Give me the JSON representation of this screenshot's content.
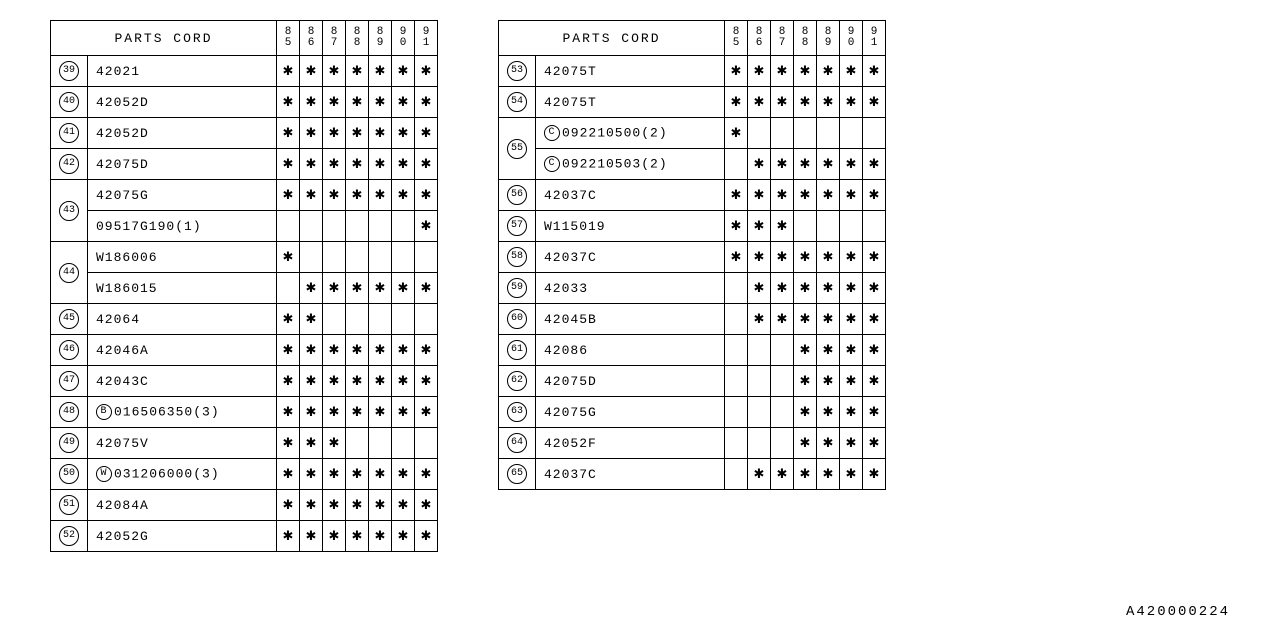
{
  "header": "PARTS CORD",
  "years": [
    "85",
    "86",
    "87",
    "88",
    "89",
    "90",
    "91"
  ],
  "doc_id": "A420000224",
  "left_rows": [
    {
      "ref": "39",
      "part": "42021",
      "marks": [
        1,
        1,
        1,
        1,
        1,
        1,
        1
      ]
    },
    {
      "ref": "40",
      "part": "42052D",
      "marks": [
        1,
        1,
        1,
        1,
        1,
        1,
        1
      ]
    },
    {
      "ref": "41",
      "part": "42052D",
      "marks": [
        1,
        1,
        1,
        1,
        1,
        1,
        1
      ]
    },
    {
      "ref": "42",
      "part": "42075D",
      "marks": [
        1,
        1,
        1,
        1,
        1,
        1,
        1
      ]
    },
    {
      "ref": "43",
      "span": 2,
      "part": "42075G",
      "marks": [
        1,
        1,
        1,
        1,
        1,
        1,
        1
      ]
    },
    {
      "part": "09517G190(1)",
      "marks": [
        0,
        0,
        0,
        0,
        0,
        0,
        1
      ]
    },
    {
      "ref": "44",
      "span": 2,
      "part": "W186006",
      "marks": [
        1,
        0,
        0,
        0,
        0,
        0,
        0
      ]
    },
    {
      "part": "W186015",
      "marks": [
        0,
        1,
        1,
        1,
        1,
        1,
        1
      ]
    },
    {
      "ref": "45",
      "part": "42064",
      "marks": [
        1,
        1,
        0,
        0,
        0,
        0,
        0
      ]
    },
    {
      "ref": "46",
      "part": "42046A",
      "marks": [
        1,
        1,
        1,
        1,
        1,
        1,
        1
      ]
    },
    {
      "ref": "47",
      "part": "42043C",
      "marks": [
        1,
        1,
        1,
        1,
        1,
        1,
        1
      ]
    },
    {
      "ref": "48",
      "prefix": "B",
      "part": "016506350(3)",
      "marks": [
        1,
        1,
        1,
        1,
        1,
        1,
        1
      ]
    },
    {
      "ref": "49",
      "part": "42075V",
      "marks": [
        1,
        1,
        1,
        0,
        0,
        0,
        0
      ]
    },
    {
      "ref": "50",
      "prefix": "W",
      "part": "031206000(3)",
      "marks": [
        1,
        1,
        1,
        1,
        1,
        1,
        1
      ]
    },
    {
      "ref": "51",
      "part": "42084A",
      "marks": [
        1,
        1,
        1,
        1,
        1,
        1,
        1
      ]
    },
    {
      "ref": "52",
      "part": "42052G",
      "marks": [
        1,
        1,
        1,
        1,
        1,
        1,
        1
      ]
    }
  ],
  "right_rows": [
    {
      "ref": "53",
      "part": "42075T",
      "marks": [
        1,
        1,
        1,
        1,
        1,
        1,
        1
      ]
    },
    {
      "ref": "54",
      "part": "42075T",
      "marks": [
        1,
        1,
        1,
        1,
        1,
        1,
        1
      ]
    },
    {
      "ref": "55",
      "span": 2,
      "prefix": "C",
      "part": "092210500(2)",
      "marks": [
        1,
        0,
        0,
        0,
        0,
        0,
        0
      ]
    },
    {
      "prefix": "C",
      "part": "092210503(2)",
      "marks": [
        0,
        1,
        1,
        1,
        1,
        1,
        1
      ]
    },
    {
      "ref": "56",
      "part": "42037C",
      "marks": [
        1,
        1,
        1,
        1,
        1,
        1,
        1
      ]
    },
    {
      "ref": "57",
      "part": "W115019",
      "marks": [
        1,
        1,
        1,
        0,
        0,
        0,
        0
      ]
    },
    {
      "ref": "58",
      "part": "42037C",
      "marks": [
        1,
        1,
        1,
        1,
        1,
        1,
        1
      ]
    },
    {
      "ref": "59",
      "part": "42033",
      "marks": [
        0,
        1,
        1,
        1,
        1,
        1,
        1
      ]
    },
    {
      "ref": "60",
      "part": "42045B",
      "marks": [
        0,
        1,
        1,
        1,
        1,
        1,
        1
      ]
    },
    {
      "ref": "61",
      "part": "42086",
      "marks": [
        0,
        0,
        0,
        1,
        1,
        1,
        1
      ]
    },
    {
      "ref": "62",
      "part": "42075D",
      "marks": [
        0,
        0,
        0,
        1,
        1,
        1,
        1
      ]
    },
    {
      "ref": "63",
      "part": "42075G",
      "marks": [
        0,
        0,
        0,
        1,
        1,
        1,
        1
      ]
    },
    {
      "ref": "64",
      "part": "42052F",
      "marks": [
        0,
        0,
        0,
        1,
        1,
        1,
        1
      ]
    },
    {
      "ref": "65",
      "part": "42037C",
      "marks": [
        0,
        1,
        1,
        1,
        1,
        1,
        1
      ]
    }
  ]
}
